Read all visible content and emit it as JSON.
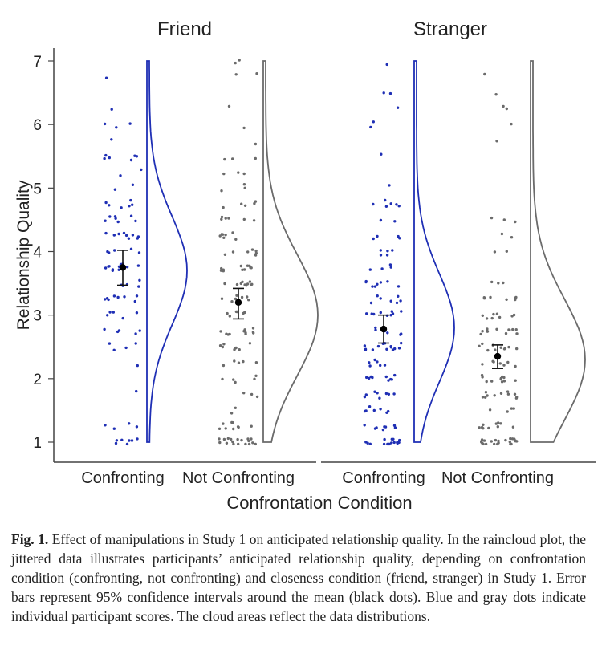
{
  "chart_data": {
    "type": "scatter",
    "subtype": "raincloud",
    "xlabel": "Confrontation Condition",
    "ylabel": "Relationship Quality",
    "ylim": [
      1,
      7
    ],
    "yticks": [
      "1",
      "2",
      "3",
      "4",
      "5",
      "6",
      "7"
    ],
    "panels": [
      {
        "title": "Friend",
        "groups": [
          {
            "label": "Confronting",
            "color": "#1f2fb5",
            "mean": 3.75,
            "ci_low": 3.47,
            "ci_high": 4.02,
            "n": 100,
            "seed": 11,
            "density_peak": 3.7
          },
          {
            "label": "Not Confronting",
            "color": "#6b6b6b",
            "mean": 3.2,
            "ci_low": 2.94,
            "ci_high": 3.42,
            "n": 140,
            "seed": 23,
            "density_peak": 3.0
          }
        ]
      },
      {
        "title": "Stranger",
        "groups": [
          {
            "label": "Confronting",
            "color": "#1f2fb5",
            "mean": 2.78,
            "ci_low": 2.56,
            "ci_high": 3.0,
            "n": 130,
            "seed": 37,
            "density_peak": 2.8
          },
          {
            "label": "Not Confronting",
            "color": "#6b6b6b",
            "mean": 2.35,
            "ci_low": 2.16,
            "ci_high": 2.53,
            "n": 120,
            "seed": 51,
            "density_peak": 2.3
          }
        ]
      }
    ]
  },
  "caption": {
    "label": "Fig. 1.",
    "text": "Effect of manipulations in Study 1 on anticipated relationship quality. In the raincloud plot, the jittered data illustrates participants’ anticipated relationship quality, depending on confrontation condition (confronting, not confronting) and closeness condition (friend, stranger) in Study 1. Error bars represent 95% confidence intervals around the mean (black dots). Blue and gray dots indicate individual participant scores. The cloud areas reflect the data distributions."
  }
}
